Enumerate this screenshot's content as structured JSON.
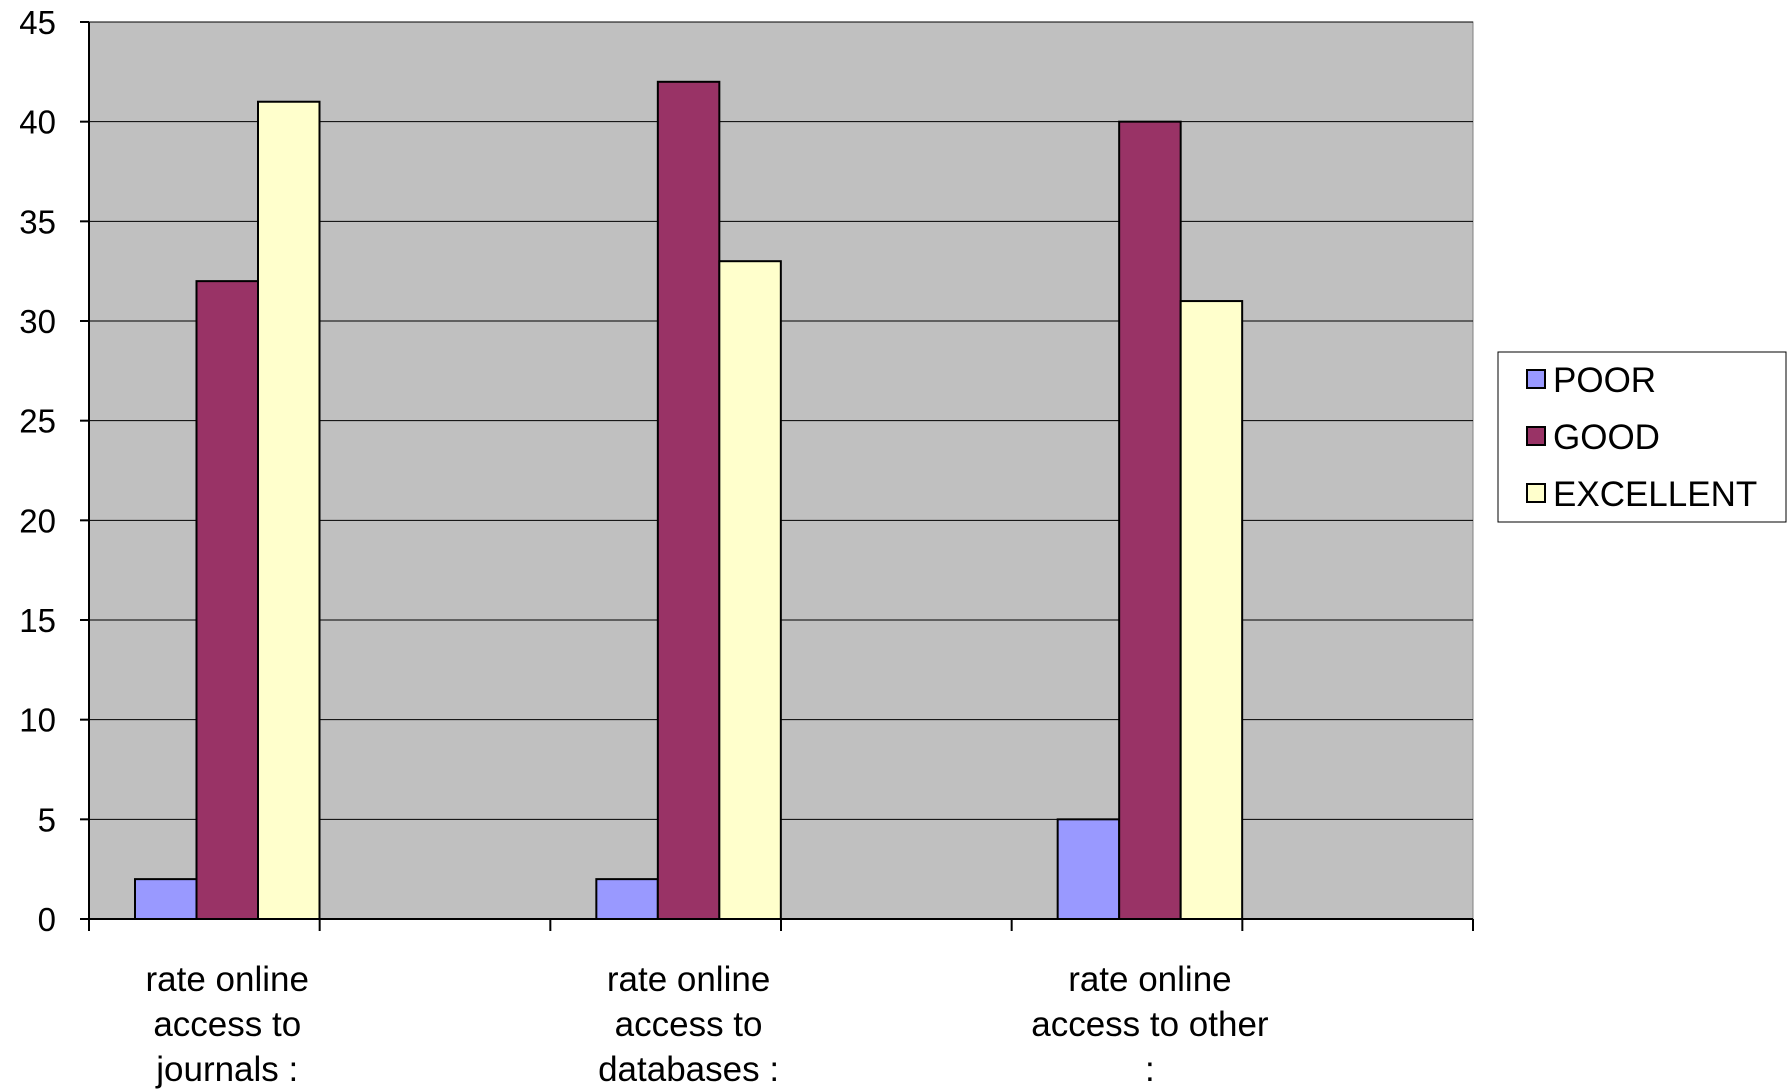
{
  "chart_data": {
    "type": "bar",
    "categories": [
      [
        "rate online",
        "access to",
        "journals :"
      ],
      [
        "rate online",
        "access to",
        "databases :"
      ],
      [
        "rate online",
        "access to other",
        ":"
      ]
    ],
    "series": [
      {
        "name": "POOR",
        "color": "#9999ff",
        "values": [
          2,
          2,
          5
        ]
      },
      {
        "name": "GOOD",
        "color": "#993366",
        "values": [
          32,
          42,
          40
        ]
      },
      {
        "name": "EXCELLENT",
        "color": "#ffffcc",
        "values": [
          41,
          33,
          31
        ]
      }
    ],
    "ylim": [
      0,
      45
    ],
    "yticks": [
      0,
      5,
      10,
      15,
      20,
      25,
      30,
      35,
      40,
      45
    ],
    "grid": true,
    "plot_background": "#c0c0c0",
    "legend_position": "right"
  }
}
